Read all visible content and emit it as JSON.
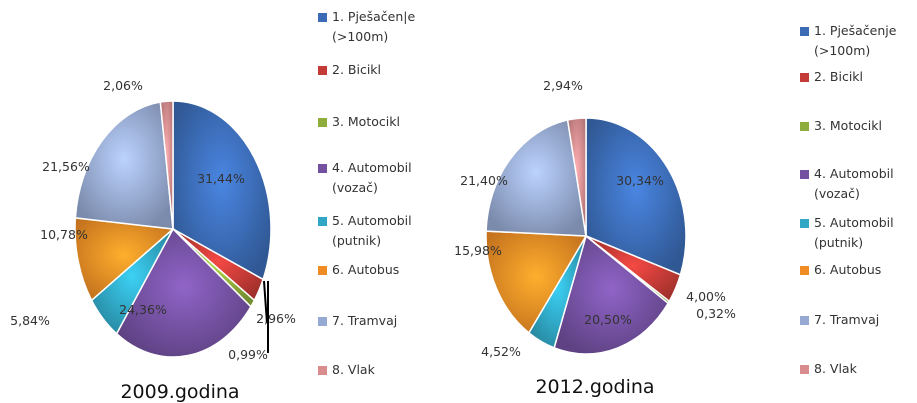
{
  "chart_data": [
    {
      "type": "pie",
      "title": "2009.godina",
      "categories": [
        "1. Pješačenje (>100m)",
        "2. Bicikl",
        "3. Motocikl",
        "4. Automobil (vozač)",
        "5. Automobil (putnik)",
        "6. Autobus",
        "7. Tramvaj",
        "8. Vlak"
      ],
      "values": [
        31.44,
        2.96,
        0.99,
        24.36,
        5.84,
        10.78,
        21.56,
        2.06
      ],
      "value_labels": [
        "31,44%",
        "2,96%",
        "0,99%",
        "24,36%",
        "5,84%",
        "10,78%",
        "21,56%",
        "2,06%"
      ],
      "legend": {
        "position": "right",
        "lines": [
          [
            "1. Pješačen|e",
            "(>100m)"
          ],
          [
            "2. Bicikl"
          ],
          [
            "3. Motocikl"
          ],
          [
            "4. Automobil",
            "(vozač)"
          ],
          [
            "5. Automobil",
            "(putnik)"
          ],
          [
            "6. Autobus"
          ],
          [
            "7. Tramvaj"
          ],
          [
            "8. Vlak"
          ]
        ]
      }
    },
    {
      "type": "pie",
      "title": "2012.godina",
      "categories": [
        "1. Pješačenje (>100m)",
        "2. Bicikl",
        "3. Motocikl",
        "4. Automobil (vozač)",
        "5. Automobil (putnik)",
        "6. Autobus",
        "7. Tramvaj",
        "8. Vlak"
      ],
      "values": [
        30.34,
        4.0,
        0.32,
        20.5,
        4.52,
        15.98,
        21.4,
        2.94
      ],
      "value_labels": [
        "30,34%",
        "4,00%",
        "0,32%",
        "20,50%",
        "4,52%",
        "15,98%",
        "21,40%",
        "2,94%"
      ],
      "legend": {
        "position": "right",
        "lines": [
          [
            "1. Pješačenje",
            "(>100m)"
          ],
          [
            "2. Bicikl"
          ],
          [
            "3. Motocikl"
          ],
          [
            "4. Automobil",
            "(vozač)"
          ],
          [
            "5. Automobil",
            "(putnik)"
          ],
          [
            "6. Autobus"
          ],
          [
            "7. Tramvaj"
          ],
          [
            "8. Vlak"
          ]
        ]
      }
    }
  ],
  "colors": [
    "#3b6bb5",
    "#c43a36",
    "#8fad3c",
    "#7350a0",
    "#30a7c4",
    "#f08c24",
    "#96a9d2",
    "#d98c8e"
  ]
}
